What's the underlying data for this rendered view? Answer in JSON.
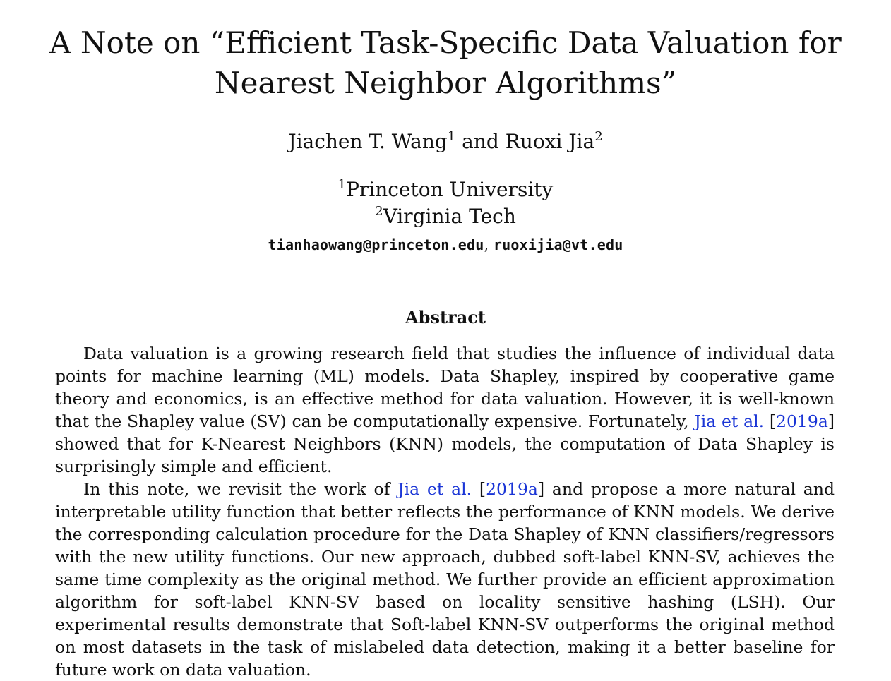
{
  "paper": {
    "title": "A Note on “Efficient Task-Specific Data Valuation for Nearest Neighbor Algorithms”",
    "authors": [
      {
        "name": "Jiachen T. Wang",
        "mark": "1"
      },
      {
        "name": "Ruoxi Jia",
        "mark": "2"
      }
    ],
    "author_joiner": " and ",
    "affiliations": [
      {
        "mark": "1",
        "name": "Princeton University"
      },
      {
        "mark": "2",
        "name": "Virginia Tech"
      }
    ],
    "emails": [
      "tianhaowang@princeton.edu",
      "ruoxijia@vt.edu"
    ],
    "email_separator": ", ",
    "abstract_heading": "Abstract",
    "abstract": {
      "p1": {
        "before": "Data valuation is a growing research field that studies the influence of individual data points for machine learning (ML) models.  Data Shapley, inspired by cooperative game theory and economics, is an effective method for data valuation.  However, it is well-known that the Shapley value (SV) can be computationally expensive.  Fortunately, ",
        "cite_author": "Jia et al.",
        "cite_open": " [",
        "cite_year": "2019a",
        "cite_close": "]",
        "after": " showed that for K-Nearest Neighbors (KNN) models, the computation of Data Shapley is surprisingly simple and efficient."
      },
      "p2": {
        "before": "In this note, we revisit the work of ",
        "cite_author": "Jia et al.",
        "cite_open": " [",
        "cite_year": "2019a",
        "cite_close": "]",
        "after": " and propose a more natural and inter­pretable utility function that better reflects the performance of KNN models.  We derive the corresponding calculation procedure for the Data Shapley of KNN classifiers/regressors with the new utility functions.  Our new approach, dubbed soft-label KNN-SV, achieves the same time complexity as the original method.  We further provide an efficient approximation algorithm for soft-label KNN-SV based on locality sensitive hashing (LSH). Our experimental results demon­strate that Soft-label KNN-SV outperforms the original method on most datasets in the task of mislabeled data detection, making it a better baseline for future work on data valuation."
      }
    },
    "colors": {
      "citation_link": "#1a35d6",
      "text": "#111111",
      "background": "#ffffff"
    }
  }
}
